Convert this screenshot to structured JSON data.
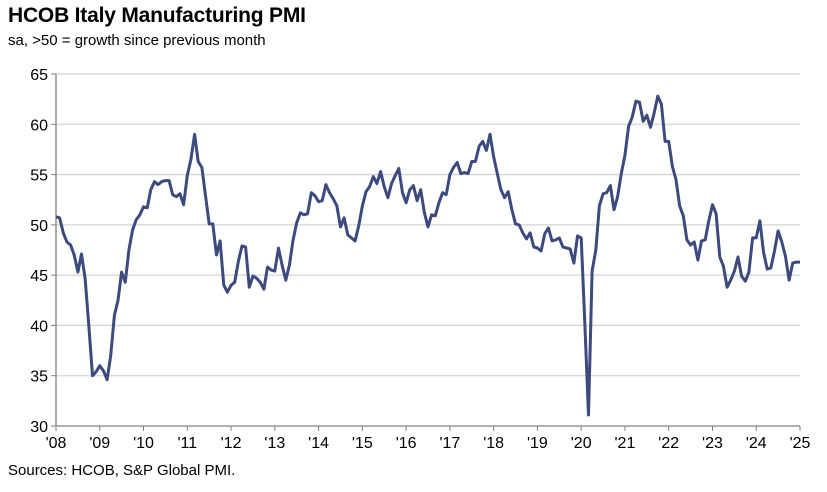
{
  "chart_data": {
    "type": "line",
    "title": "HCOB Italy Manufacturing PMI",
    "subtitle": "sa, >50 = growth since previous month",
    "source": "Sources: HCOB, S&P Global PMI.",
    "xlabel": "",
    "ylabel": "",
    "ylim": [
      30,
      65
    ],
    "yticks": [
      30,
      35,
      40,
      45,
      50,
      55,
      60,
      65
    ],
    "xticks": [
      "'08",
      "'09",
      "'10",
      "'11",
      "'12",
      "'13",
      "'14",
      "'15",
      "'16",
      "'17",
      "'18",
      "'19",
      "'20",
      "'21",
      "'22",
      "'23",
      "'24",
      "'25"
    ],
    "x_range": [
      "2008-01",
      "2025-01"
    ],
    "grid": "horizontal",
    "line_color": "#3c4a7d",
    "series": [
      {
        "frequency": "monthly",
        "start": "2008-01",
        "values": [
          50.8,
          50.7,
          49.2,
          48.3,
          48.0,
          47.0,
          45.3,
          47.1,
          44.6,
          40.0,
          35.0,
          35.4,
          36.0,
          35.5,
          34.6,
          37.0,
          41.0,
          42.5,
          45.3,
          44.3,
          47.5,
          49.5,
          50.5,
          51.0,
          51.8,
          51.7,
          53.5,
          54.3,
          54.0,
          54.3,
          54.4,
          54.4,
          53.0,
          52.8,
          53.1,
          52.0,
          54.9,
          56.5,
          59.0,
          56.3,
          55.7,
          52.9,
          50.1,
          50.1,
          47.0,
          48.4,
          44.0,
          43.3,
          44.0,
          44.3,
          46.4,
          47.9,
          47.8,
          43.8,
          44.9,
          44.7,
          44.3,
          43.6,
          45.8,
          45.5,
          45.4,
          47.7,
          46.0,
          44.5,
          46.0,
          48.5,
          50.2,
          51.2,
          51.0,
          51.1,
          53.2,
          52.9,
          52.3,
          52.4,
          54.0,
          53.2,
          52.6,
          51.9,
          49.8,
          50.7,
          49.0,
          48.7,
          48.4,
          49.9,
          51.9,
          53.3,
          53.8,
          54.8,
          54.1,
          55.3,
          53.8,
          52.7,
          54.1,
          54.9,
          55.6,
          53.2,
          52.2,
          53.5,
          53.9,
          52.4,
          53.5,
          51.2,
          49.8,
          51.0,
          50.9,
          52.2,
          53.2,
          53.0,
          55.0,
          55.7,
          56.2,
          55.1,
          55.2,
          55.1,
          56.3,
          56.3,
          57.8,
          58.3,
          57.4,
          59.0,
          56.8,
          55.1,
          53.5,
          52.7,
          53.3,
          51.5,
          50.1,
          50.0,
          49.2,
          48.6,
          49.2,
          47.8,
          47.7,
          47.4,
          49.1,
          49.7,
          48.4,
          48.5,
          48.7,
          47.8,
          47.7,
          47.6,
          46.2,
          48.9,
          48.7,
          40.3,
          31.1,
          45.4,
          47.5,
          51.9,
          53.1,
          53.2,
          53.9,
          51.5,
          52.8,
          55.1,
          56.9,
          59.8,
          60.7,
          62.3,
          62.2,
          60.3,
          60.9,
          59.7,
          61.1,
          62.8,
          62.0,
          58.3,
          58.3,
          55.8,
          54.5,
          51.9,
          50.9,
          48.5,
          48.0,
          48.3,
          46.5,
          48.4,
          48.5,
          50.4,
          52.0,
          51.1,
          46.8,
          45.9,
          43.8,
          44.5,
          45.4,
          46.8,
          44.9,
          44.4,
          45.3,
          48.7,
          48.7,
          50.4,
          47.3,
          45.6,
          45.7,
          47.4,
          49.4,
          48.3,
          46.9,
          44.5,
          46.2,
          46.3,
          46.3
        ]
      }
    ]
  }
}
